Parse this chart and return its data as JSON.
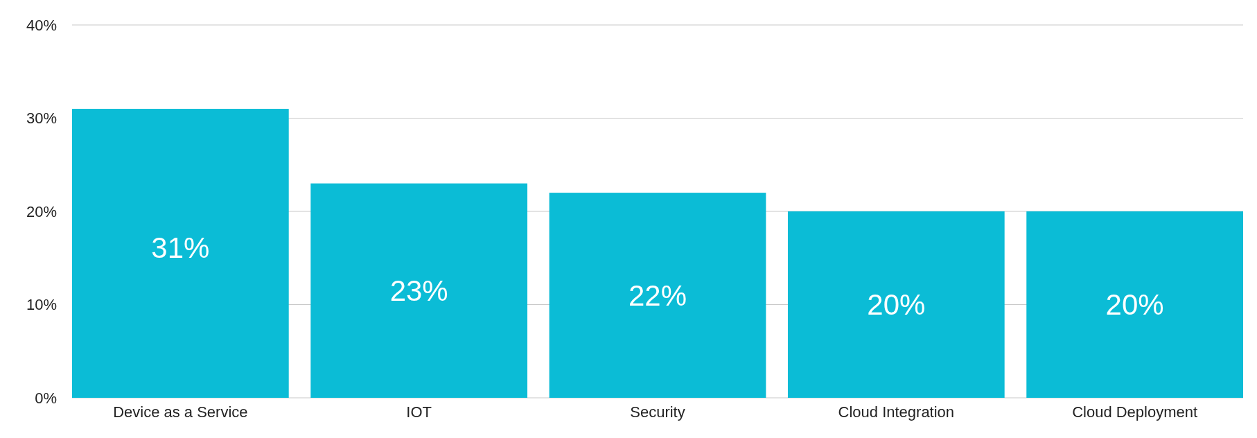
{
  "chart_data": {
    "type": "bar",
    "categories": [
      "Device as a Service",
      "IOT",
      "Security",
      "Cloud Integration",
      "Cloud Deployment"
    ],
    "values": [
      31,
      23,
      22,
      20,
      20
    ],
    "color": "#0bbcd6",
    "ylim": [
      0,
      40
    ],
    "yticks": [
      {
        "value": 0,
        "label": "0%"
      },
      {
        "value": 10,
        "label": "10%"
      },
      {
        "value": 20,
        "label": "20%"
      },
      {
        "value": 30,
        "label": "30%"
      },
      {
        "value": 40,
        "label": "40%"
      }
    ],
    "grid": "y",
    "value_labels": [
      "31%",
      "23%",
      "22%",
      "20%",
      "20%"
    ]
  }
}
